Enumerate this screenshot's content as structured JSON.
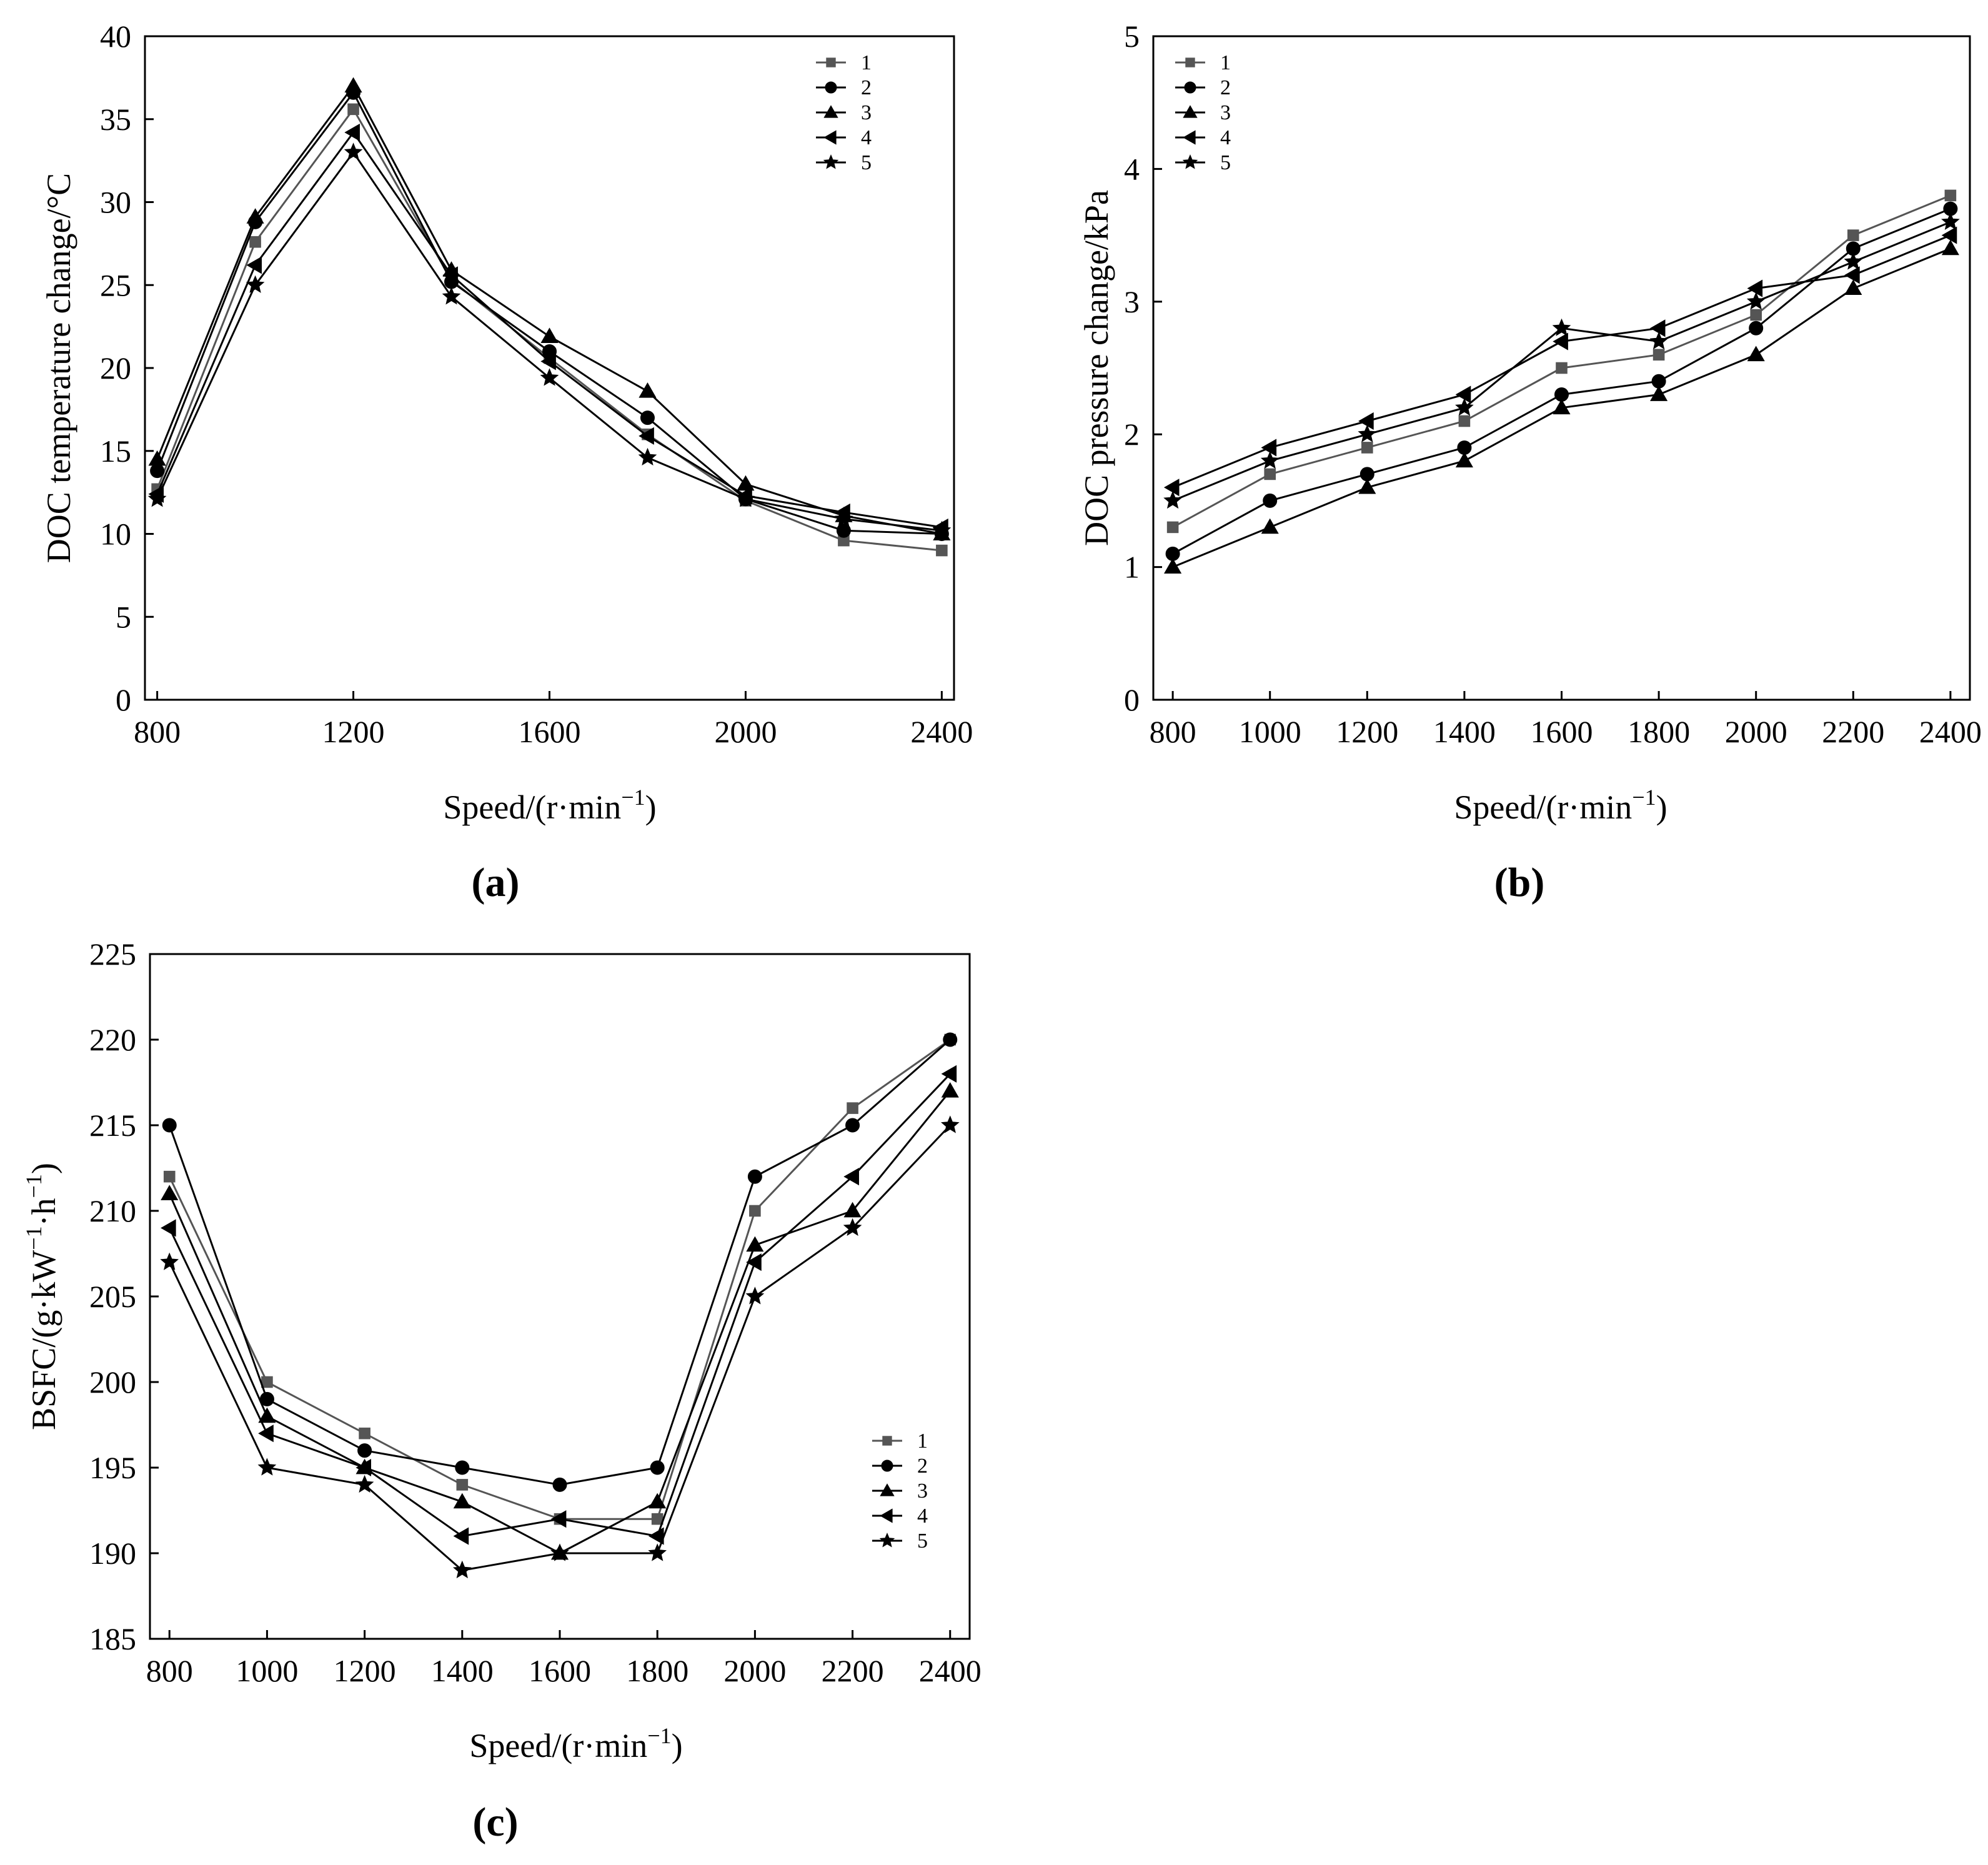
{
  "chart_data": [
    {
      "panel": "a",
      "type": "line",
      "panel_label": "(a)",
      "xlabel_base": "Speed/(r·min",
      "xlabel_sup": "−1",
      "xlabel_close": ")",
      "ylabel": "DOC temperature change/°C",
      "xlim": [
        775,
        2425
      ],
      "ylim": [
        0,
        40
      ],
      "xticks": [
        800,
        1200,
        1600,
        2000,
        2400
      ],
      "yticks": [
        0,
        5,
        10,
        15,
        20,
        25,
        30,
        35,
        40
      ],
      "x": [
        800,
        1000,
        1200,
        1400,
        1600,
        1800,
        2000,
        2200,
        2400
      ],
      "legend_position": "top-right",
      "series": [
        {
          "name": "1",
          "marker": "square",
          "color": "#555555",
          "values": [
            12.7,
            27.6,
            35.6,
            25.3,
            20.6,
            16.0,
            12.0,
            9.6,
            9.0
          ]
        },
        {
          "name": "2",
          "marker": "circle",
          "color": "#000000",
          "values": [
            13.8,
            28.8,
            36.6,
            25.2,
            21.0,
            17.0,
            12.1,
            10.2,
            10.0
          ]
        },
        {
          "name": "3",
          "marker": "triangle-up",
          "color": "#000000",
          "values": [
            14.5,
            29.1,
            37.0,
            25.9,
            21.9,
            18.6,
            13.0,
            11.1,
            10.0
          ]
        },
        {
          "name": "4",
          "marker": "triangle-left",
          "color": "#000000",
          "values": [
            12.4,
            26.2,
            34.2,
            25.6,
            20.4,
            15.9,
            12.3,
            11.3,
            10.4
          ]
        },
        {
          "name": "5",
          "marker": "star",
          "color": "#000000",
          "values": [
            12.1,
            25.0,
            33.0,
            24.3,
            19.4,
            14.6,
            12.1,
            10.9,
            10.2
          ]
        }
      ]
    },
    {
      "panel": "b",
      "type": "line",
      "panel_label": "(b)",
      "xlabel_base": "Speed/(r·min",
      "xlabel_sup": "−1",
      "xlabel_close": ")",
      "ylabel": "DOC pressure change/kPa",
      "xlim": [
        760,
        2440
      ],
      "ylim": [
        0,
        5
      ],
      "xticks": [
        800,
        1000,
        1200,
        1400,
        1600,
        1800,
        2000,
        2200,
        2400
      ],
      "yticks": [
        0,
        1,
        2,
        3,
        4,
        5
      ],
      "x": [
        800,
        1000,
        1200,
        1400,
        1600,
        1800,
        2000,
        2200,
        2400
      ],
      "legend_position": "top-left",
      "series": [
        {
          "name": "1",
          "marker": "square",
          "color": "#555555",
          "values": [
            1.3,
            1.7,
            1.9,
            2.1,
            2.5,
            2.6,
            2.9,
            3.5,
            3.8
          ]
        },
        {
          "name": "2",
          "marker": "circle",
          "color": "#000000",
          "values": [
            1.1,
            1.5,
            1.7,
            1.9,
            2.3,
            2.4,
            2.8,
            3.4,
            3.7
          ]
        },
        {
          "name": "3",
          "marker": "triangle-up",
          "color": "#000000",
          "values": [
            1.0,
            1.3,
            1.6,
            1.8,
            2.2,
            2.3,
            2.6,
            3.1,
            3.4
          ]
        },
        {
          "name": "4",
          "marker": "triangle-left",
          "color": "#000000",
          "values": [
            1.6,
            1.9,
            2.1,
            2.3,
            2.7,
            2.8,
            3.1,
            3.2,
            3.5
          ]
        },
        {
          "name": "5",
          "marker": "star",
          "color": "#000000",
          "values": [
            1.5,
            1.8,
            2.0,
            2.2,
            2.8,
            2.7,
            3.0,
            3.3,
            3.6
          ]
        }
      ]
    },
    {
      "panel": "c",
      "type": "line",
      "panel_label": "(c)",
      "xlabel_base": "Speed/(r·min",
      "xlabel_sup": "−1",
      "xlabel_close": ")",
      "ylabel": "BSFC/(g·kW−1·h−1)",
      "xlim": [
        760,
        2440
      ],
      "ylim": [
        185,
        225
      ],
      "xticks": [
        800,
        1000,
        1200,
        1400,
        1600,
        1800,
        2000,
        2200,
        2400
      ],
      "yticks": [
        185,
        190,
        195,
        200,
        205,
        210,
        215,
        220,
        225
      ],
      "x": [
        800,
        1000,
        1200,
        1400,
        1600,
        1800,
        2000,
        2200,
        2400
      ],
      "legend_position": "bottom-right",
      "series": [
        {
          "name": "1",
          "marker": "square",
          "color": "#555555",
          "values": [
            212,
            200,
            197,
            194,
            192,
            192,
            210,
            216,
            220
          ]
        },
        {
          "name": "2",
          "marker": "circle",
          "color": "#000000",
          "values": [
            215,
            199,
            196,
            195,
            194,
            195,
            212,
            215,
            220
          ]
        },
        {
          "name": "3",
          "marker": "triangle-up",
          "color": "#000000",
          "values": [
            211,
            198,
            195,
            193,
            190,
            193,
            208,
            210,
            217
          ]
        },
        {
          "name": "4",
          "marker": "triangle-left",
          "color": "#000000",
          "values": [
            209,
            197,
            195,
            191,
            192,
            191,
            207,
            212,
            218
          ]
        },
        {
          "name": "5",
          "marker": "star",
          "color": "#000000",
          "values": [
            207,
            195,
            194,
            189,
            190,
            190,
            205,
            209,
            215
          ]
        }
      ]
    }
  ]
}
